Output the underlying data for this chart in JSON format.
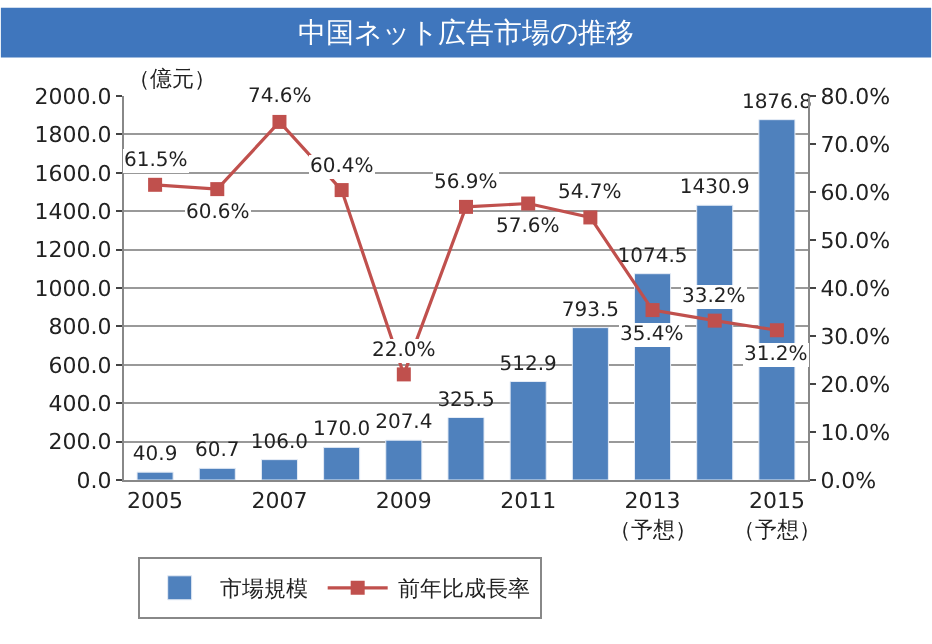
{
  "chart_data": {
    "type": "bar",
    "title": "中国ネット広告市場の推移",
    "ylabel": "（億元）",
    "categories": [
      "2005",
      null,
      "2007",
      null,
      "2009",
      null,
      "2011",
      null,
      "2013\n（予想）",
      null,
      "2015\n（予想）"
    ],
    "series": [
      {
        "name": "市場規模",
        "color": "#4f81bd",
        "values": [
          40.9,
          60.7,
          106.0,
          170.0,
          207.4,
          325.5,
          512.9,
          793.5,
          1074.5,
          1430.9,
          1876.8
        ],
        "value_labels": [
          "40.9",
          "60.7",
          "106.0",
          "170.0",
          "207.4",
          "325.5",
          "512.9",
          "793.5",
          "1074.5",
          "1430.9",
          "1876.8"
        ]
      },
      {
        "name": "前年比成長率",
        "type": "line",
        "axis": "y2",
        "color": "#c0504d",
        "marker": "square",
        "line_style": "solid",
        "values": [
          61.5,
          60.6,
          74.6,
          60.4,
          22.0,
          56.9,
          57.6,
          54.7,
          35.4,
          33.2,
          31.2
        ],
        "value_labels": [
          "61.5%",
          "60.6%",
          "74.6%",
          "60.4%",
          "22.0%",
          "56.9%",
          "57.6%",
          "54.7%",
          "35.4%",
          "33.2%",
          "31.2%"
        ]
      }
    ],
    "ylim": [
      0,
      2000
    ],
    "yticks": [
      {
        "value": 0,
        "label": "0.0"
      },
      {
        "value": 200,
        "label": "200.0"
      },
      {
        "value": 400,
        "label": "400.0"
      },
      {
        "value": 600,
        "label": "600.0"
      },
      {
        "value": 800,
        "label": "800.0"
      },
      {
        "value": 1000,
        "label": "1000.0"
      },
      {
        "value": 1200,
        "label": "1200.0"
      },
      {
        "value": 1400,
        "label": "1400.0"
      },
      {
        "value": 1600,
        "label": "1600.0"
      },
      {
        "value": 1800,
        "label": "1800.0"
      },
      {
        "value": 2000,
        "label": "2000.0"
      }
    ],
    "y2lim": [
      0,
      80
    ],
    "y2ticks": [
      {
        "value": 0,
        "label": "0.0%"
      },
      {
        "value": 10,
        "label": "10.0%"
      },
      {
        "value": 20,
        "label": "20.0%"
      },
      {
        "value": 30,
        "label": "30.0%"
      },
      {
        "value": 40,
        "label": "40.0%"
      },
      {
        "value": 50,
        "label": "50.0%"
      },
      {
        "value": 60,
        "label": "60.0%"
      },
      {
        "value": 70,
        "label": "70.0%"
      },
      {
        "value": 80,
        "label": "80.0%"
      }
    ],
    "grid": "y",
    "legend": "bottom"
  }
}
